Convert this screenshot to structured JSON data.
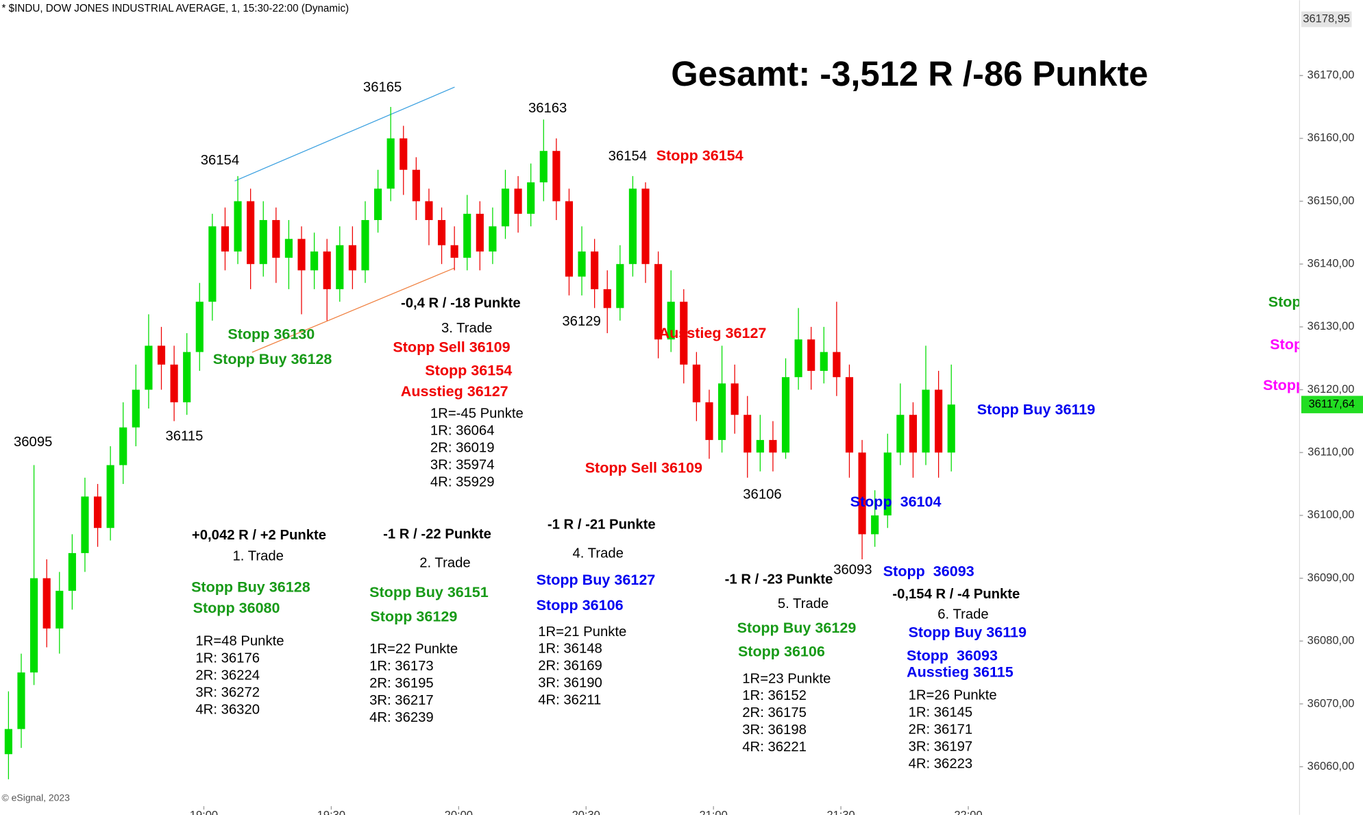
{
  "chart_data": {
    "type": "candlestick",
    "header": "* $INDU, DOW JONES INDUSTRIAL AVERAGE, 1, 15:30-22:00 (Dynamic)",
    "title": "Gesamt: -3,512 R /-86 Punkte",
    "copyright": "© eSignal, 2023",
    "up_color": "#00dd00",
    "down_color": "#ee0000",
    "ylim": [
      36054,
      36182
    ],
    "yticks": [
      {
        "value": 36060,
        "label": "36060,00"
      },
      {
        "value": 36070,
        "label": "36070,00"
      },
      {
        "value": 36080,
        "label": "36080,00"
      },
      {
        "value": 36090,
        "label": "36090,00"
      },
      {
        "value": 36100,
        "label": "36100,00"
      },
      {
        "value": 36110,
        "label": "36110,00"
      },
      {
        "value": 36120,
        "label": "36120,00"
      },
      {
        "value": 36130,
        "label": "36130,00"
      },
      {
        "value": 36140,
        "label": "36140,00"
      },
      {
        "value": 36150,
        "label": "36150,00"
      },
      {
        "value": 36160,
        "label": "36160,00"
      },
      {
        "value": 36170,
        "label": "36170,00"
      }
    ],
    "high_label": {
      "value": 36178.95,
      "label": "36178,95"
    },
    "last_price": {
      "value": 36117.64,
      "label": "36117,64"
    },
    "xlim": [
      "18:12",
      "23:18"
    ],
    "xticks": [
      "19:00",
      "19:30",
      "20:00",
      "20:30",
      "21:00",
      "21:30",
      "22:00"
    ],
    "x": [
      "18:14",
      "18:17",
      "18:20",
      "18:23",
      "18:26",
      "18:29",
      "18:32",
      "18:35",
      "18:38",
      "18:41",
      "18:44",
      "18:47",
      "18:50",
      "18:53",
      "18:56",
      "18:59",
      "19:02",
      "19:05",
      "19:08",
      "19:11",
      "19:14",
      "19:17",
      "19:20",
      "19:23",
      "19:26",
      "19:29",
      "19:32",
      "19:35",
      "19:38",
      "19:41",
      "19:44",
      "19:47",
      "19:50",
      "19:53",
      "19:56",
      "19:59",
      "20:02",
      "20:05",
      "20:08",
      "20:11",
      "20:14",
      "20:17",
      "20:20",
      "20:23",
      "20:26",
      "20:29",
      "20:32",
      "20:35",
      "20:38",
      "20:41",
      "20:44",
      "20:47",
      "20:50",
      "20:53",
      "20:56",
      "20:59",
      "21:02",
      "21:05",
      "21:08",
      "21:11",
      "21:14",
      "21:17",
      "21:20",
      "21:23",
      "21:26",
      "21:29",
      "21:32",
      "21:35",
      "21:38",
      "21:41",
      "21:44",
      "21:47",
      "21:50",
      "21:53",
      "21:56"
    ],
    "open": [
      36062,
      36066,
      36075,
      36090,
      36082,
      36088,
      36094,
      36103,
      36098,
      36108,
      36114,
      36120,
      36127,
      36124,
      36118,
      36126,
      36134,
      36146,
      36142,
      36150,
      36140,
      36147,
      36141,
      36144,
      36139,
      36142,
      36136,
      36143,
      36139,
      36147,
      36152,
      36160,
      36155,
      36150,
      36147,
      36143,
      36141,
      36148,
      36142,
      36146,
      36152,
      36148,
      36153,
      36158,
      36150,
      36138,
      36142,
      36136,
      36133,
      36140,
      36152,
      36140,
      36128,
      36134,
      36124,
      36118,
      36112,
      36121,
      36116,
      36110,
      36112,
      36110,
      36122,
      36128,
      36123,
      36126,
      36122,
      36110,
      36097,
      36100,
      36110,
      36116,
      36110,
      36120,
      36110
    ],
    "high": [
      36072,
      36078,
      36108,
      36093,
      36091,
      36097,
      36106,
      36105,
      36111,
      36118,
      36124,
      36132,
      36130,
      36127,
      36129,
      36137,
      36148,
      36149,
      36154,
      36152,
      36150,
      36149,
      36147,
      36146,
      36145,
      36144,
      36146,
      36146,
      36150,
      36155,
      36165,
      36162,
      36157,
      36152,
      36149,
      36146,
      36151,
      36150,
      36149,
      36155,
      36154,
      36156,
      36163,
      36160,
      36152,
      36146,
      36144,
      36139,
      36143,
      36154,
      36153,
      36142,
      36139,
      36136,
      36126,
      36120,
      36127,
      36124,
      36119,
      36116,
      36115,
      36125,
      36133,
      36130,
      36130,
      36134,
      36124,
      36112,
      36104,
      36113,
      36121,
      36118,
      36127,
      36123,
      36124
    ],
    "low": [
      36058,
      36063,
      36073,
      36079,
      36078,
      36085,
      36091,
      36095,
      36096,
      36105,
      36111,
      36117,
      36120,
      36115,
      36116,
      36123,
      36131,
      36139,
      36140,
      36136,
      36138,
      36137,
      36136,
      36132,
      36136,
      36131,
      36134,
      36136,
      36137,
      36145,
      36150,
      36151,
      36147,
      36143,
      36140,
      36139,
      36139,
      36139,
      36140,
      36144,
      36145,
      36146,
      36150,
      36147,
      36135,
      36135,
      36133,
      36129,
      36131,
      36138,
      36137,
      36125,
      36126,
      36121,
      36115,
      36109,
      36110,
      36113,
      36106,
      36107,
      36107,
      36109,
      36120,
      36120,
      36121,
      36119,
      36106,
      36093,
      36095,
      36098,
      36108,
      36106,
      36108,
      36106,
      36107
    ],
    "close": [
      36066,
      36075,
      36090,
      36082,
      36088,
      36094,
      36103,
      36098,
      36108,
      36114,
      36120,
      36127,
      36124,
      36118,
      36126,
      36134,
      36146,
      36142,
      36150,
      36140,
      36147,
      36141,
      36144,
      36139,
      36142,
      36136,
      36143,
      36139,
      36147,
      36152,
      36160,
      36155,
      36150,
      36147,
      36143,
      36141,
      36148,
      36142,
      36146,
      36152,
      36148,
      36153,
      36158,
      36150,
      36138,
      36142,
      36136,
      36133,
      36140,
      36152,
      36140,
      36128,
      36134,
      36124,
      36118,
      36112,
      36121,
      36116,
      36110,
      36112,
      36110,
      36122,
      36128,
      36123,
      36126,
      36122,
      36110,
      36097,
      36100,
      36110,
      36116,
      36110,
      36120,
      36110,
      36117.64
    ],
    "annotations": [
      "36165",
      "36163",
      "36154",
      "36154",
      "36095",
      "36115",
      "36129",
      "36106",
      "36093",
      "Stopp 36154",
      "Ausstieg 36127",
      "Stopp Sell 36109",
      "Stopp 36130",
      "Stopp Buy 36128",
      "Stopp Buy 36119",
      "Stopp  36104",
      "Stopp  36093",
      "Stopp",
      "Stopp",
      "Stopp"
    ],
    "trades": [
      {
        "result": "+0,042 R / +2 Punkte",
        "name": "1. Trade",
        "color": "#179a17",
        "orders": [
          "Stopp Buy 36128",
          "Stopp 36080"
        ],
        "levels": [
          "1R=48 Punkte",
          "1R: 36176",
          "2R: 36224",
          "3R: 36272",
          "4R: 36320"
        ]
      },
      {
        "result": "-1 R / -22 Punkte",
        "name": "2. Trade",
        "color": "#179a17",
        "orders": [
          "Stopp Buy 36151",
          "Stopp 36129"
        ],
        "levels": [
          "1R=22 Punkte",
          "1R: 36173",
          "2R: 36195",
          "3R: 36217",
          "4R: 36239"
        ]
      },
      {
        "result": "-0,4 R / -18 Punkte",
        "name": "3. Trade",
        "color": "#f00000",
        "orders": [
          "Stopp Sell 36109",
          "Stopp 36154",
          "Ausstieg 36127"
        ],
        "levels": [
          "1R=-45 Punkte",
          "1R: 36064",
          "2R: 36019",
          "3R: 35974",
          "4R: 35929"
        ]
      },
      {
        "result": "-1 R / -21 Punkte",
        "name": "4. Trade",
        "color": "#0000f0",
        "orders": [
          "Stopp Buy 36127",
          "Stopp 36106"
        ],
        "levels": [
          "1R=21 Punkte",
          "1R: 36148",
          "2R: 36169",
          "3R: 36190",
          "4R: 36211"
        ]
      },
      {
        "result": "-1 R / -23 Punkte",
        "name": "5. Trade",
        "color": "#179a17",
        "orders": [
          "Stopp Buy 36129",
          "Stopp 36106"
        ],
        "levels": [
          "1R=23 Punkte",
          "1R: 36152",
          "2R: 36175",
          "3R: 36198",
          "4R: 36221"
        ]
      },
      {
        "result": "-0,154 R / -4 Punkte",
        "name": "6. Trade",
        "color": "#0000f0",
        "orders": [
          "Stopp Buy 36119",
          "Stopp  36093",
          "Ausstieg 36115"
        ],
        "levels": [
          "1R=26 Punkte",
          "1R: 36145",
          "2R: 36171",
          "3R: 36197",
          "4R: 36223"
        ]
      }
    ]
  }
}
